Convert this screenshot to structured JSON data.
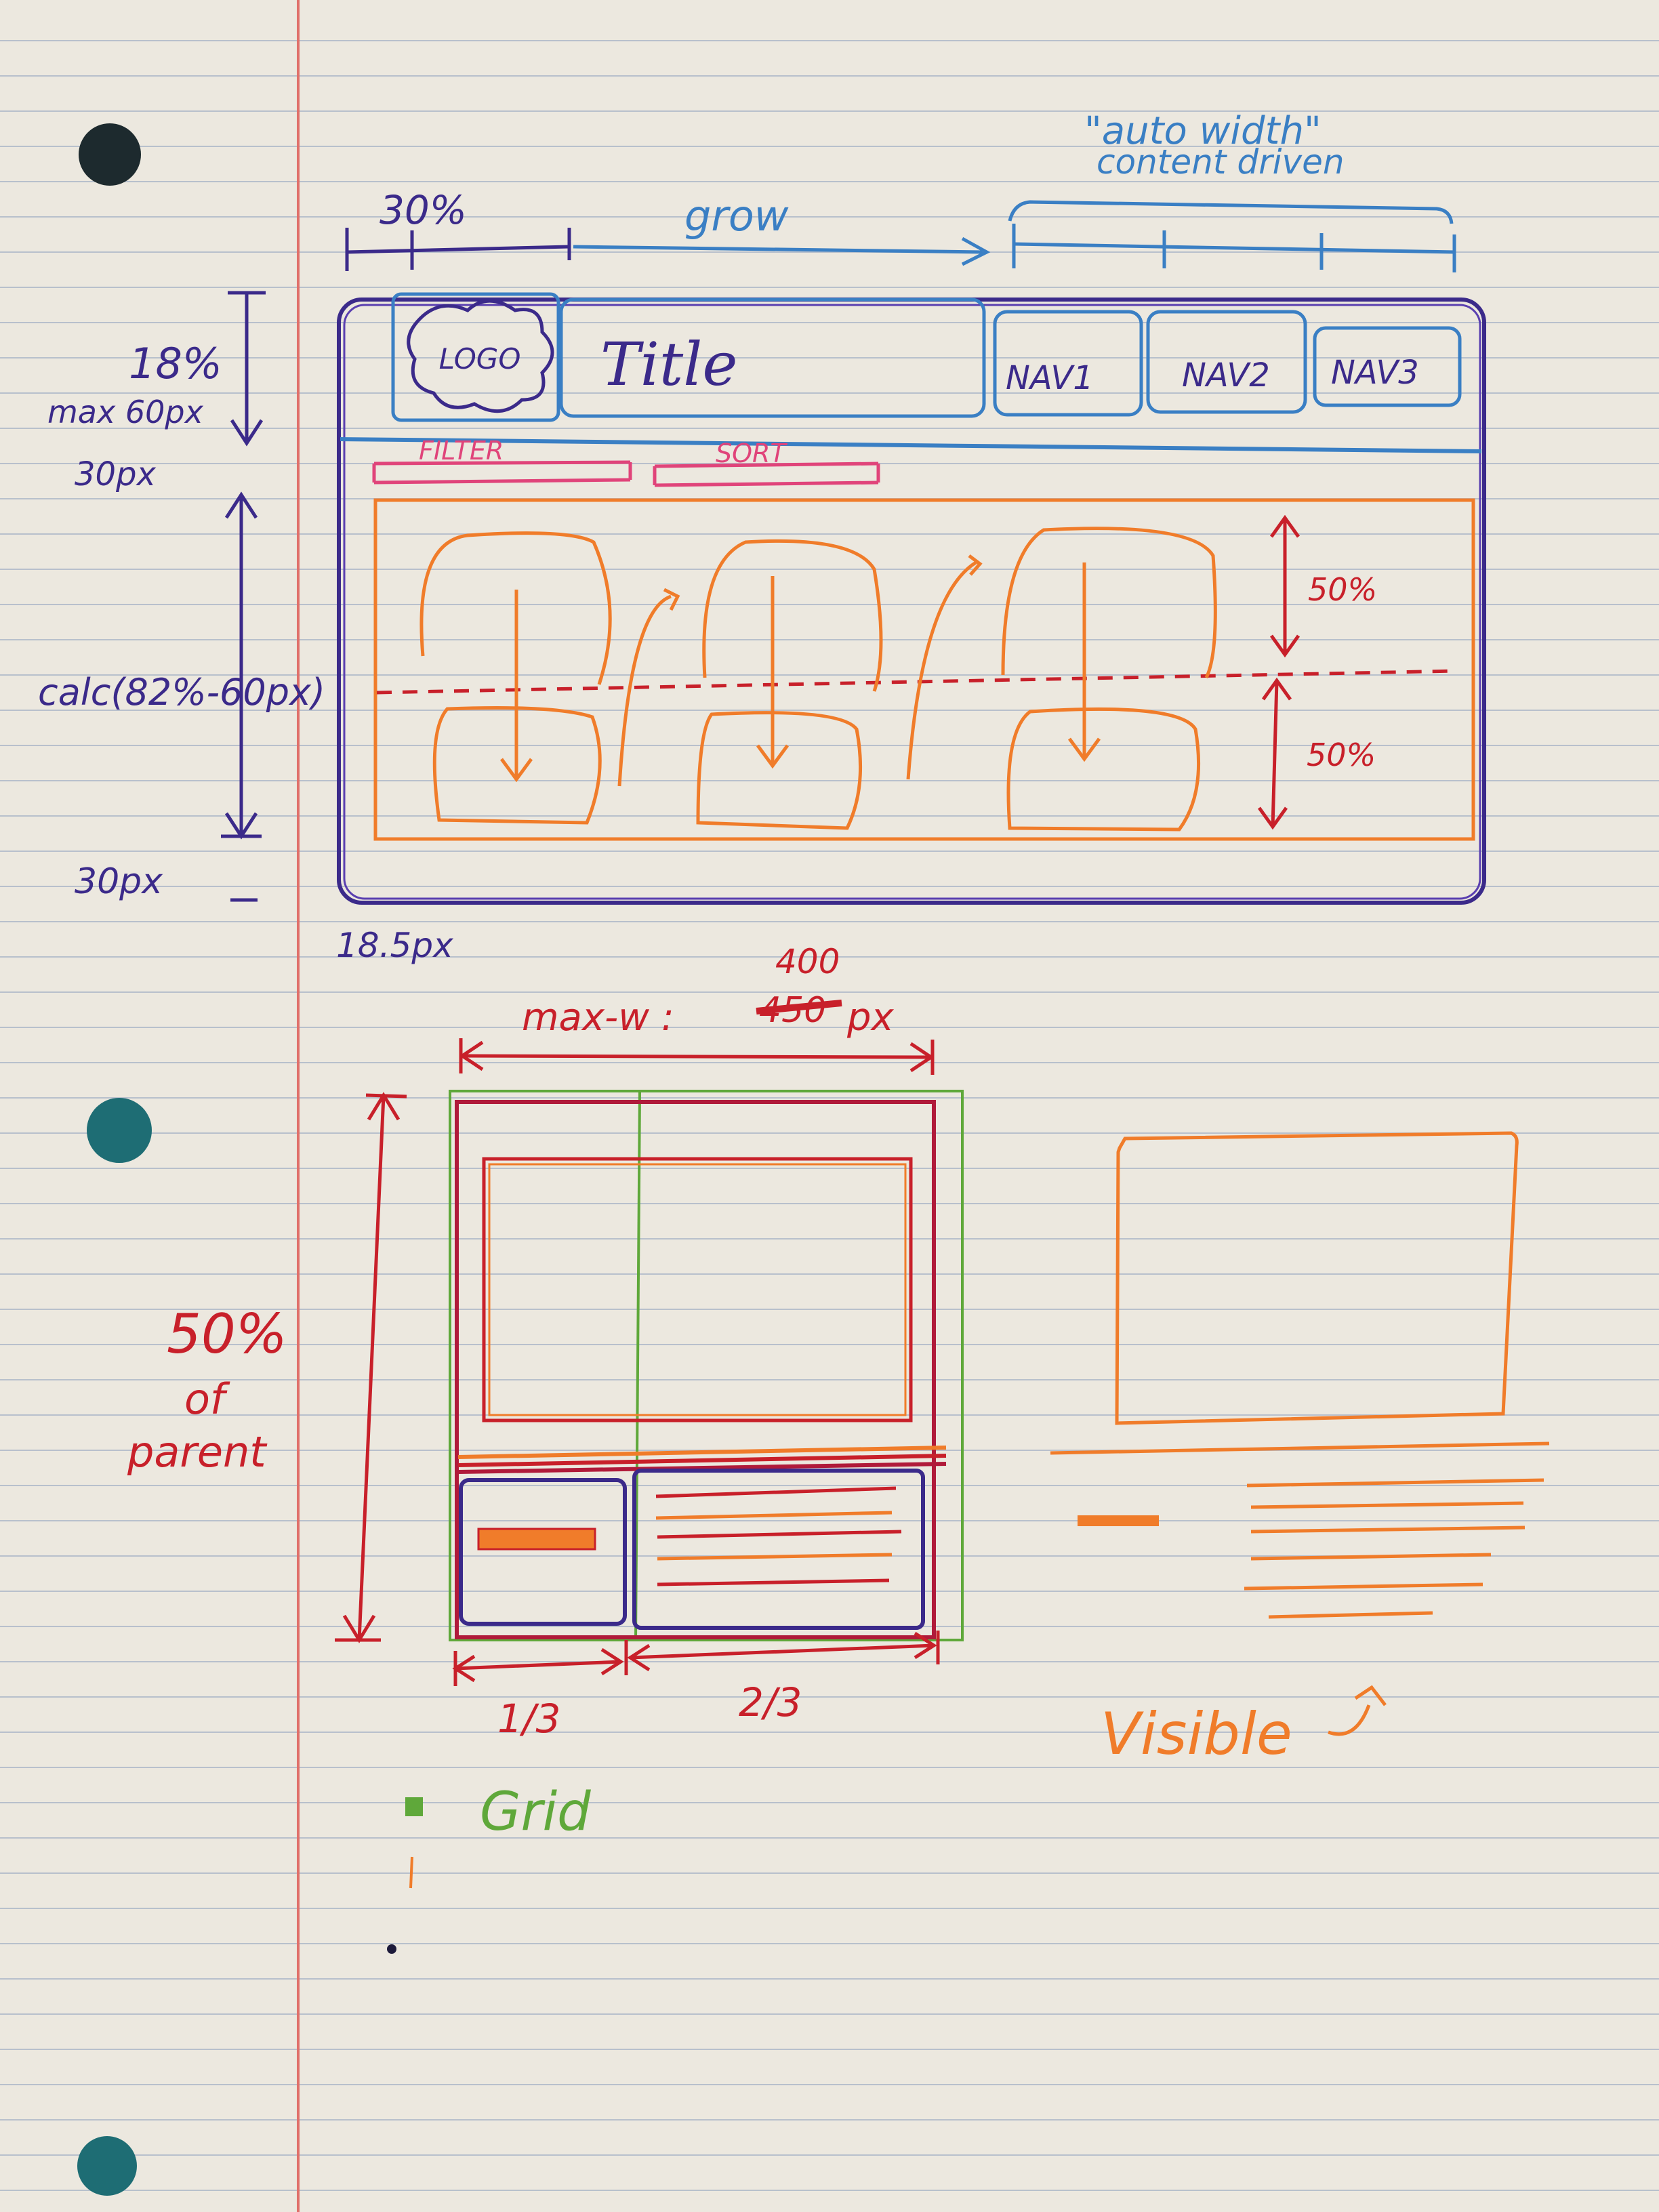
{
  "colors": {
    "paper": "#ece8df",
    "rule_line": "#b8c0cc",
    "margin_line": "#e0706a",
    "navy": "#3b2a8a",
    "blue": "#3a7fc4",
    "pink": "#e0447a",
    "orange": "#f07c2a",
    "red": "#c8202a",
    "green": "#5fa83a"
  },
  "top_sketch": {
    "width_labels": {
      "logo_width": "30%",
      "title_width": "grow",
      "nav_width": "\"auto width\"",
      "nav_width_sub": "content driven"
    },
    "height_labels": {
      "header": "18%",
      "header_max": "max 60px",
      "filter_bar": "30px",
      "content": "calc(82%-60px)",
      "footer": "30px"
    },
    "bottom_label": "18.5px",
    "header": {
      "logo": "LOGO",
      "title": "Title",
      "nav": [
        "NAV1",
        "NAV2",
        "NAV3"
      ]
    },
    "toolbar": {
      "filter": "FILTER",
      "sort": "SORT"
    },
    "row_labels": [
      "50%",
      "50%"
    ]
  },
  "bottom_sketch": {
    "max_width_label": "max-w :",
    "max_width_old": "450",
    "max_width_new": "400",
    "max_width_unit": "px",
    "height_label_line1": "50%",
    "height_label_line2": "of",
    "height_label_line3": "parent",
    "col_labels": [
      "1/3",
      "2/3"
    ],
    "grid_label": "Grid",
    "visible_label": "Visible"
  }
}
